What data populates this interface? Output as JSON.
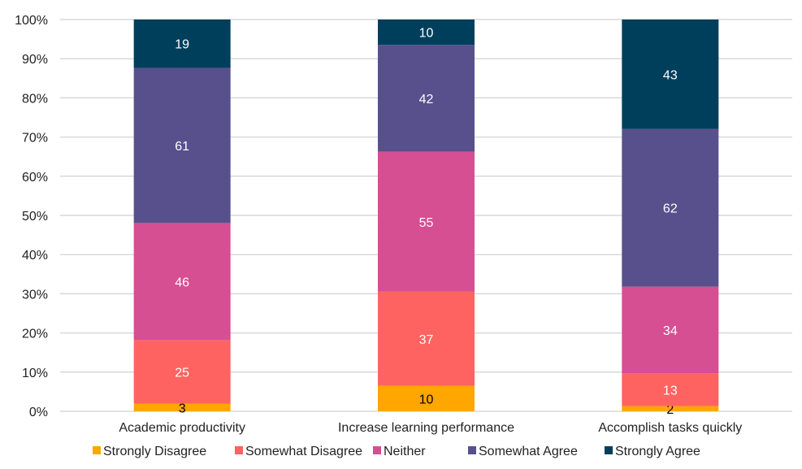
{
  "chart_data": {
    "type": "stacked-bar-100",
    "categories": [
      "Academic productivity",
      "Increase learning performance",
      "Accomplish tasks quickly"
    ],
    "series": [
      {
        "name": "Strongly Disagree",
        "values": [
          3,
          10,
          2
        ],
        "color": "#FFA600",
        "label_color": "#000000"
      },
      {
        "name": "Somewhat Disagree",
        "values": [
          25,
          37,
          13
        ],
        "color": "#FF6361",
        "label_color": "#FFFFFF"
      },
      {
        "name": "Neither",
        "values": [
          46,
          55,
          34
        ],
        "color": "#D54F92",
        "label_color": "#FFFFFF"
      },
      {
        "name": "Somewhat Agree",
        "values": [
          61,
          42,
          62
        ],
        "color": "#58508D",
        "label_color": "#FFFFFF"
      },
      {
        "name": "Strongly Agree",
        "values": [
          19,
          10,
          43
        ],
        "color": "#003F5C",
        "label_color": "#FFFFFF"
      }
    ],
    "y_ticks": [
      "0%",
      "10%",
      "20%",
      "30%",
      "40%",
      "50%",
      "60%",
      "70%",
      "80%",
      "90%",
      "100%"
    ],
    "ylim": [
      0,
      100
    ],
    "grid": true,
    "legend": "bottom",
    "title": "",
    "xlabel": "",
    "ylabel": ""
  }
}
